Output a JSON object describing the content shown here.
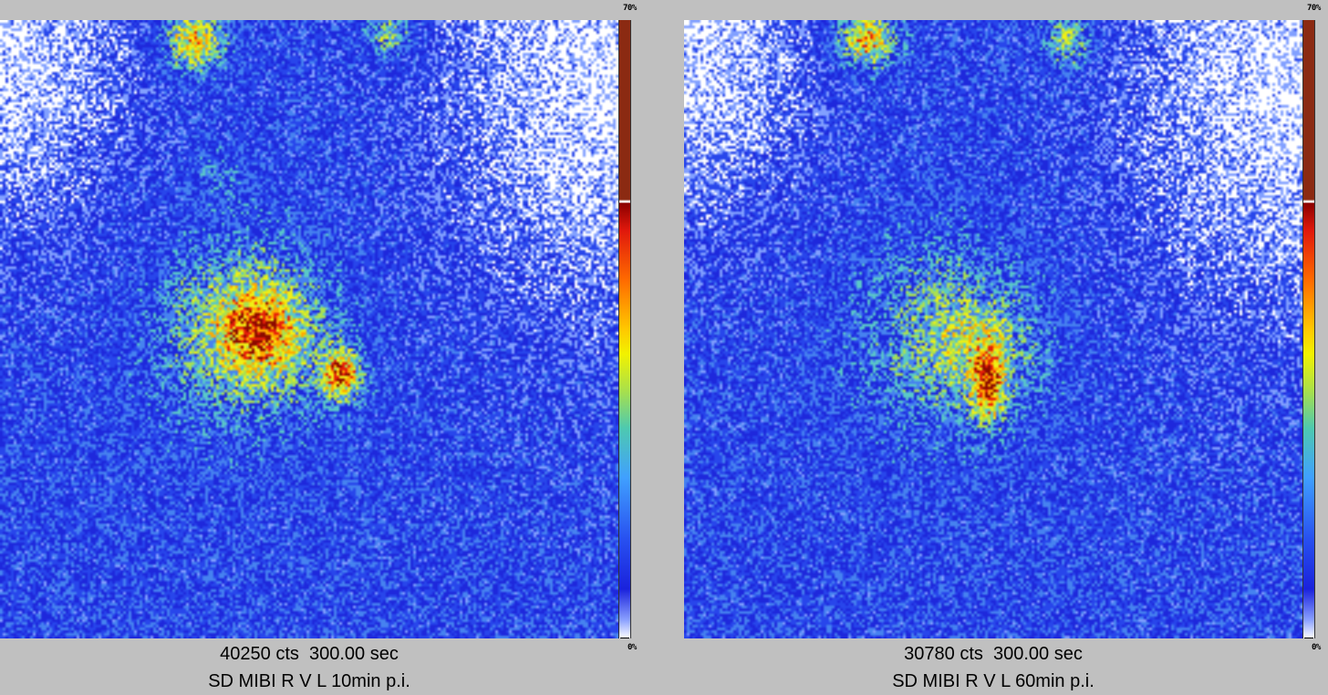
{
  "colorbar": {
    "max_label": "70%",
    "min_label": "0%",
    "colors": [
      "#8b2a12",
      "#e0180c",
      "#ff6a00",
      "#ffc800",
      "#f2f200",
      "#a8e04c",
      "#4ec9b0",
      "#40a0ff",
      "#2850f0",
      "#1a22dc",
      "#ffffff"
    ]
  },
  "panels": [
    {
      "counts_line": "40250 cts  300.00 sec",
      "label_line": "SD MIBI R V L 10min p.i."
    },
    {
      "counts_line": "30780 cts  300.00 sec",
      "label_line": "SD MIBI R V L 60min p.i."
    }
  ]
}
